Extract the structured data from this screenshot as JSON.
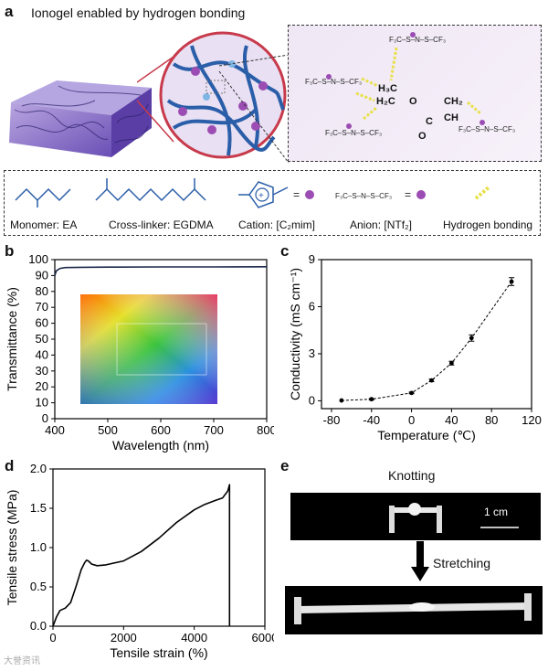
{
  "panel_a": {
    "label": "a",
    "title": "Ionogel enabled by hydrogen bonding",
    "zoom_formula": {
      "h3c": "H₃C",
      "h2c": "H₂C",
      "ch2": "CH₂",
      "ch": "CH",
      "o": "O",
      "o2": "O",
      "c": "C",
      "anion": "F₃C–S–N–S–CF₃"
    },
    "legend": {
      "monomer": "Monomer: EA",
      "crosslinker": "Cross-linker: EGDMA",
      "cation": "Cation: [C₂mim]",
      "anion": "Anion: [NTf₂]",
      "hbond": "Hydrogen bonding"
    }
  },
  "chart_data": [
    {
      "panel": "b",
      "type": "line",
      "xlabel": "Wavelength (nm)",
      "ylabel": "Transmittance (%)",
      "xlim": [
        400,
        800
      ],
      "ylim": [
        0,
        100
      ],
      "xticks": [
        400,
        500,
        600,
        700,
        800
      ],
      "yticks": [
        0,
        10,
        20,
        30,
        40,
        50,
        60,
        70,
        80,
        90,
        100
      ],
      "x": [
        400,
        403,
        410,
        420,
        450,
        500,
        600,
        700,
        800
      ],
      "y": [
        90,
        93,
        94.5,
        95,
        95.2,
        95.3,
        95.4,
        95.4,
        95.5
      ],
      "color": "#1c2a4a"
    },
    {
      "panel": "c",
      "type": "scatter",
      "xlabel": "Temperature (℃)",
      "ylabel": "Conductivity (mS cm⁻¹)",
      "xlim": [
        -90,
        120
      ],
      "ylim": [
        -0.5,
        9
      ],
      "xticks": [
        -80,
        -40,
        0,
        40,
        80,
        120
      ],
      "yticks": [
        0,
        3,
        6,
        9
      ],
      "x": [
        -70,
        -40,
        0,
        20,
        40,
        60,
        100
      ],
      "y": [
        0.02,
        0.1,
        0.5,
        1.3,
        2.4,
        4.0,
        7.6
      ],
      "yerr": [
        0.02,
        0.05,
        0.05,
        0.08,
        0.12,
        0.2,
        0.25
      ],
      "line_style": "dashed"
    },
    {
      "panel": "d",
      "type": "line",
      "xlabel": "Tensile strain (%)",
      "ylabel": "Tensile stress (MPa)",
      "xlim": [
        0,
        6000
      ],
      "ylim": [
        0,
        2.0
      ],
      "xticks": [
        0,
        2000,
        4000,
        6000
      ],
      "yticks": [
        0.0,
        0.5,
        1.0,
        1.5,
        2.0
      ],
      "x": [
        0,
        100,
        200,
        350,
        500,
        650,
        800,
        900,
        950,
        1000,
        1100,
        1250,
        1500,
        2000,
        2500,
        3000,
        3500,
        4000,
        4300,
        4600,
        4800,
        4950,
        5000,
        5000
      ],
      "y": [
        0,
        0.12,
        0.2,
        0.23,
        0.3,
        0.5,
        0.72,
        0.81,
        0.84,
        0.83,
        0.79,
        0.77,
        0.78,
        0.83,
        0.95,
        1.12,
        1.32,
        1.48,
        1.55,
        1.6,
        1.63,
        1.72,
        1.8,
        0
      ],
      "color": "#000000"
    }
  ],
  "panel_b": {
    "label": "b"
  },
  "panel_c": {
    "label": "c"
  },
  "panel_d": {
    "label": "d"
  },
  "panel_e": {
    "label": "e",
    "knotting": "Knotting",
    "scale": "1 cm",
    "stretching": "Stretching"
  },
  "watermark": "大誉资讯"
}
